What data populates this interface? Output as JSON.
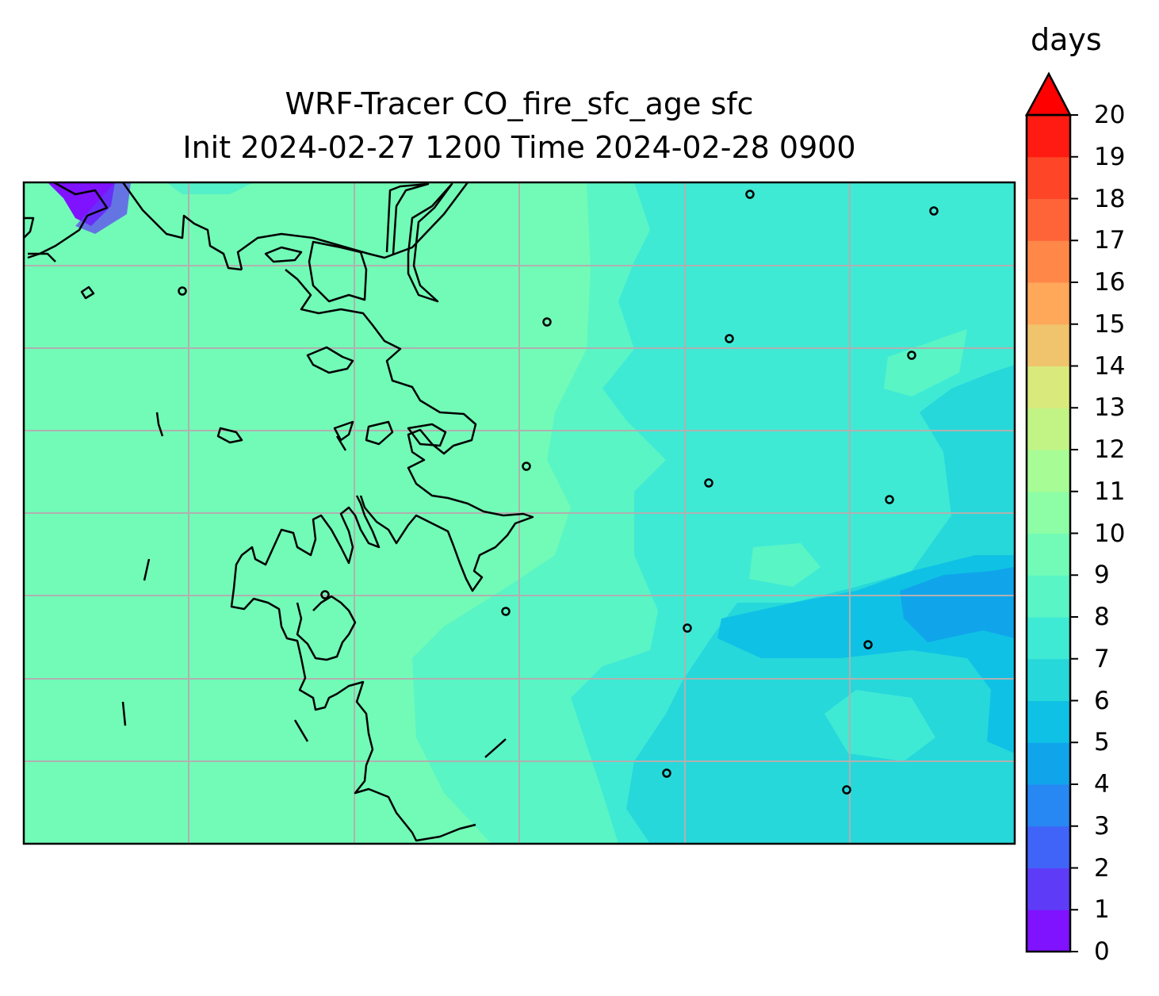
{
  "title_line1": "WRF-Tracer CO_fire_sfc_age sfc",
  "title_line2": "Init 2024-02-27 1200 Time 2024-02-28 0900",
  "colorbar": {
    "unit": "days",
    "extend": "max",
    "ticks": [
      "0",
      "1",
      "2",
      "3",
      "4",
      "5",
      "6",
      "7",
      "8",
      "9",
      "10",
      "11",
      "12",
      "13",
      "14",
      "15",
      "16",
      "17",
      "18",
      "19",
      "20"
    ],
    "colors": [
      "#7f12ff",
      "#5e3cf7",
      "#4164f8",
      "#2787f3",
      "#10a5eb",
      "#0fc2e5",
      "#27d8da",
      "#3fead5",
      "#5af5c5",
      "#72fbb6",
      "#8dfea6",
      "#a8fc95",
      "#c2f485",
      "#d9e97c",
      "#f0c46c",
      "#ffa85a",
      "#ff8849",
      "#ff6438",
      "#ff4527",
      "#ff1a12"
    ],
    "over_color": "#ff0000"
  },
  "map": {
    "background_level": 9,
    "grid": "on",
    "markers_count_hint": "point locations shown as small open circles"
  }
}
